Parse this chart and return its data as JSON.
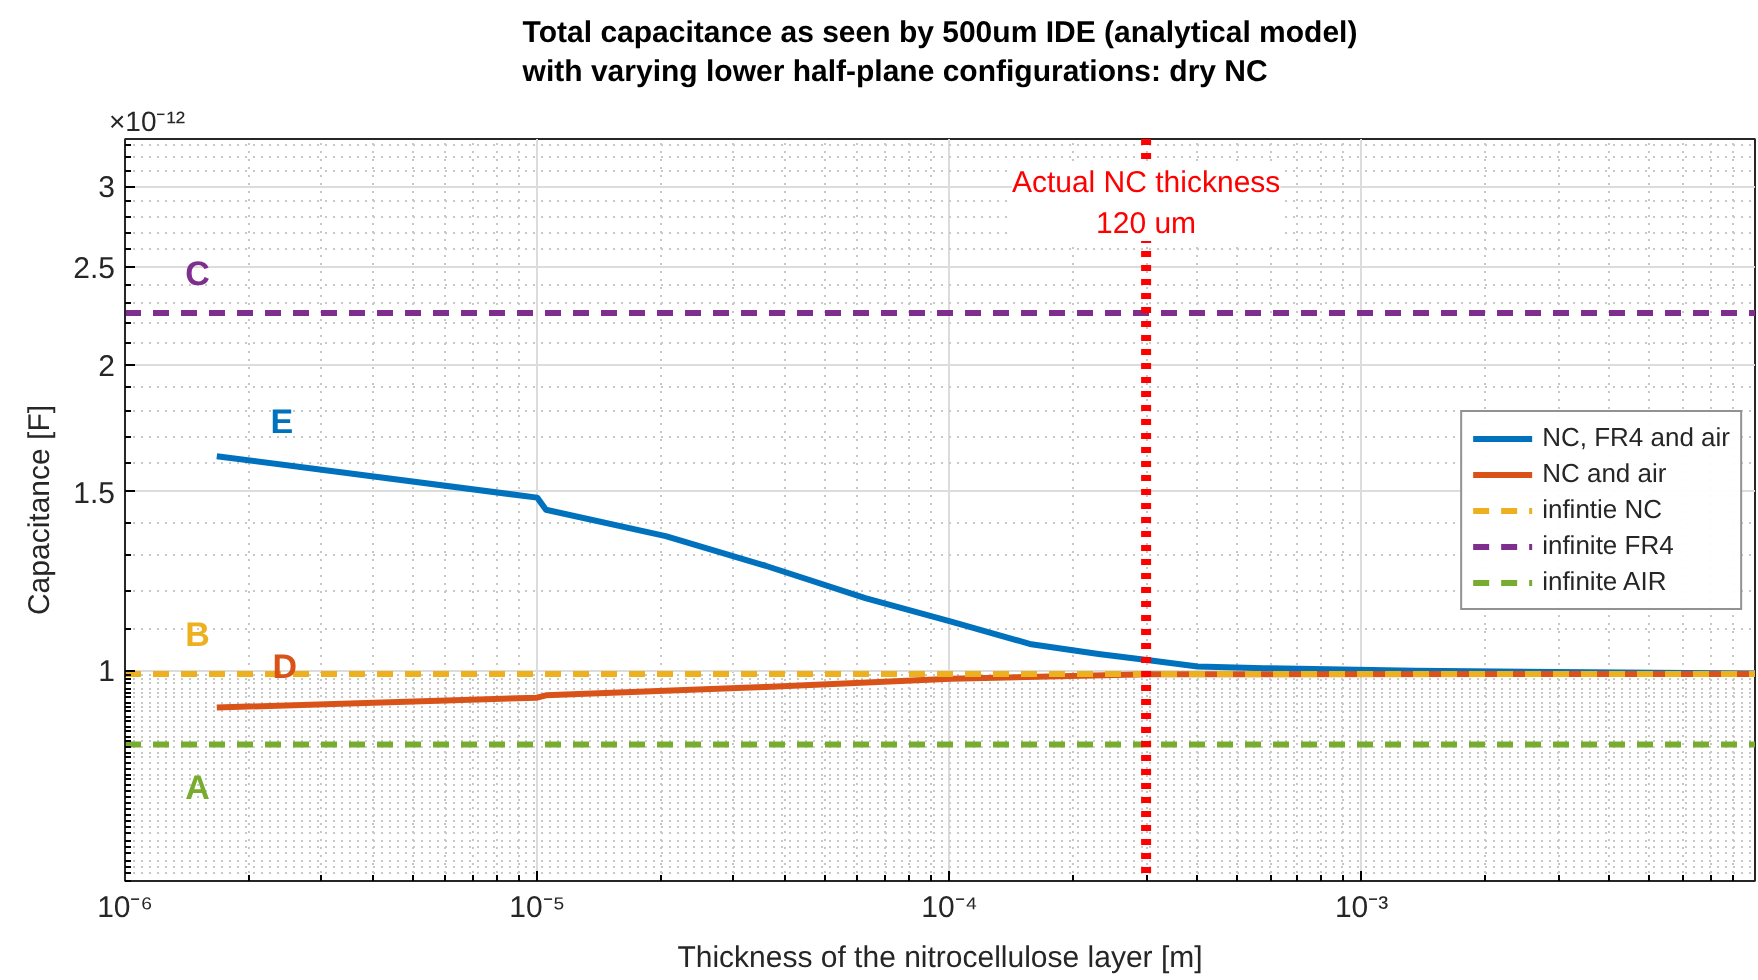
{
  "chart_data": {
    "type": "line",
    "title": "Total capacitance as seen by 500um IDE (analytical model)\nwith varying lower half-plane configurations: dry NC",
    "xlabel": "Thickness of the nitrocellulose layer [m]",
    "ylabel": "Capacitance [F]",
    "log": "xy",
    "grid": true,
    "legend": "right",
    "line_style": "solid",
    "marker": "none",
    "xlim": [
      1e-06,
      0.009
    ],
    "ylim": [
      0.62,
      3.34
    ],
    "xticks": [
      {
        "value": 1e-06,
        "label": "10⁻⁶"
      },
      {
        "value": 1e-05,
        "label": "10⁻⁵"
      },
      {
        "value": 0.0001,
        "label": "10⁻⁴"
      },
      {
        "value": 0.001,
        "label": "10⁻³"
      }
    ],
    "yticks": [
      1,
      1.5,
      2,
      2.5,
      3
    ],
    "series": [
      {
        "name": "NC, FR4 and air",
        "color": "#0072bd",
        "x": [
          1.67e-06,
          1e-05,
          1.05e-05,
          2.05e-05,
          3.58e-05,
          6.25e-05,
          0.000101,
          0.000158,
          0.00023,
          0.000305,
          0.0004,
          0.00058,
          0.00135,
          0.009
        ],
        "values": [
          1.626,
          1.48,
          1.44,
          1.356,
          1.268,
          1.178,
          1.117,
          1.061,
          1.038,
          1.023,
          1.009,
          1.005,
          0.999,
          0.993
        ]
      },
      {
        "name": "NC and air",
        "color": "#d95319",
        "x": [
          1.67e-06,
          1e-05,
          1.05e-05,
          3.58e-05,
          0.000101,
          0.000305,
          0.009
        ],
        "values": [
          0.919,
          0.94,
          0.945,
          0.963,
          0.981,
          0.991,
          0.992
        ]
      },
      {
        "name": "infintie NC",
        "color": "#edb120",
        "line_style": "dashed",
        "x": [
          1e-06,
          0.009
        ],
        "values": [
          0.992,
          0.992
        ]
      },
      {
        "name": "infinite FR4",
        "color": "#7e2f8e",
        "line_style": "dashed",
        "x": [
          1e-06,
          0.009
        ],
        "values": [
          2.25,
          2.25
        ]
      },
      {
        "name": "infinite AIR",
        "color": "#77ac30",
        "line_style": "dashed",
        "x": [
          1e-06,
          0.009
        ],
        "values": [
          0.845,
          0.845
        ]
      }
    ],
    "ref_lines": [
      {
        "axis": "x",
        "value": 0.0003,
        "label": "Actual NC thickness\n120 um",
        "color": "#ff0000",
        "line_style": "dotted"
      }
    ],
    "annotations": [
      "×10⁻¹²",
      {
        "text": "A",
        "x": 1.5e-06,
        "y": 0.845
      },
      {
        "text": "B",
        "x": 1.5e-06,
        "y": 0.992
      },
      {
        "text": "C",
        "x": 1.5e-06,
        "y": 2.25
      },
      {
        "text": "D",
        "x": 2.44e-06,
        "y": 0.922
      },
      {
        "text": "E",
        "x": 2.4e-06,
        "y": 1.61
      }
    ]
  }
}
